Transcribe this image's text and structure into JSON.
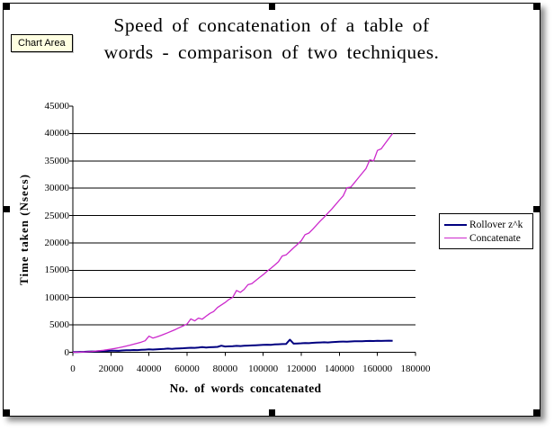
{
  "tooltip": {
    "label": "Chart Area"
  },
  "chart_data": {
    "type": "line",
    "title_line1": "Speed of concatenation of a table of",
    "title_line2": "words - comparison of two techniques.",
    "xlabel": "No. of words concatenated",
    "ylabel": "Time taken (Nsecs)",
    "xlim": [
      0,
      180000
    ],
    "ylim": [
      0,
      45000
    ],
    "x_ticks": [
      0,
      20000,
      40000,
      60000,
      80000,
      100000,
      120000,
      140000,
      160000,
      180000
    ],
    "y_ticks": [
      0,
      5000,
      10000,
      15000,
      20000,
      25000,
      30000,
      35000,
      40000,
      45000
    ],
    "grid": "horizontal-major",
    "legend_position": "right",
    "axis_color": "#000000",
    "x_start": 0,
    "x_step": 2000,
    "series": [
      {
        "name": "Rollover z^k",
        "color": "#000080",
        "stroke_width": 2,
        "values": [
          30,
          50,
          70,
          90,
          120,
          140,
          170,
          200,
          220,
          250,
          280,
          300,
          270,
          330,
          360,
          380,
          410,
          400,
          450,
          470,
          520,
          490,
          540,
          570,
          610,
          680,
          630,
          670,
          710,
          740,
          790,
          820,
          800,
          860,
          940,
          880,
          920,
          950,
          990,
          1200,
          1060,
          1090,
          1120,
          1160,
          1130,
          1190,
          1220,
          1250,
          1290,
          1320,
          1360,
          1390,
          1370,
          1430,
          1460,
          1490,
          1520,
          2300,
          1580,
          1610,
          1640,
          1690,
          1670,
          1730,
          1760,
          1790,
          1820,
          1800,
          1860,
          1890,
          1920,
          1950,
          1930,
          1980,
          2000,
          2030,
          2010,
          2050,
          2070,
          2050,
          2090,
          2070,
          2100,
          2120,
          2100
        ]
      },
      {
        "name": "Concatenate",
        "color": "#CC29CC",
        "stroke_width": 1.3,
        "values": [
          10,
          20,
          40,
          60,
          95,
          150,
          210,
          285,
          370,
          465,
          575,
          695,
          830,
          975,
          1130,
          1300,
          1475,
          1660,
          1860,
          2100,
          2950,
          2600,
          2800,
          3040,
          3310,
          3590,
          3880,
          4180,
          4500,
          4830,
          5170,
          6100,
          5750,
          6250,
          6050,
          6600,
          7100,
          7450,
          8200,
          8650,
          9100,
          9650,
          10050,
          11300,
          10950,
          11500,
          12350,
          12550,
          13100,
          13650,
          14200,
          14800,
          15350,
          15950,
          16550,
          17600,
          17800,
          18450,
          19100,
          19750,
          20400,
          21500,
          21800,
          22500,
          23250,
          24000,
          24700,
          25450,
          26200,
          27000,
          27800,
          28600,
          30100,
          30200,
          31050,
          31900,
          32750,
          33600,
          35200,
          35000,
          36900,
          37200,
          38150,
          39100,
          40000
        ]
      }
    ]
  }
}
